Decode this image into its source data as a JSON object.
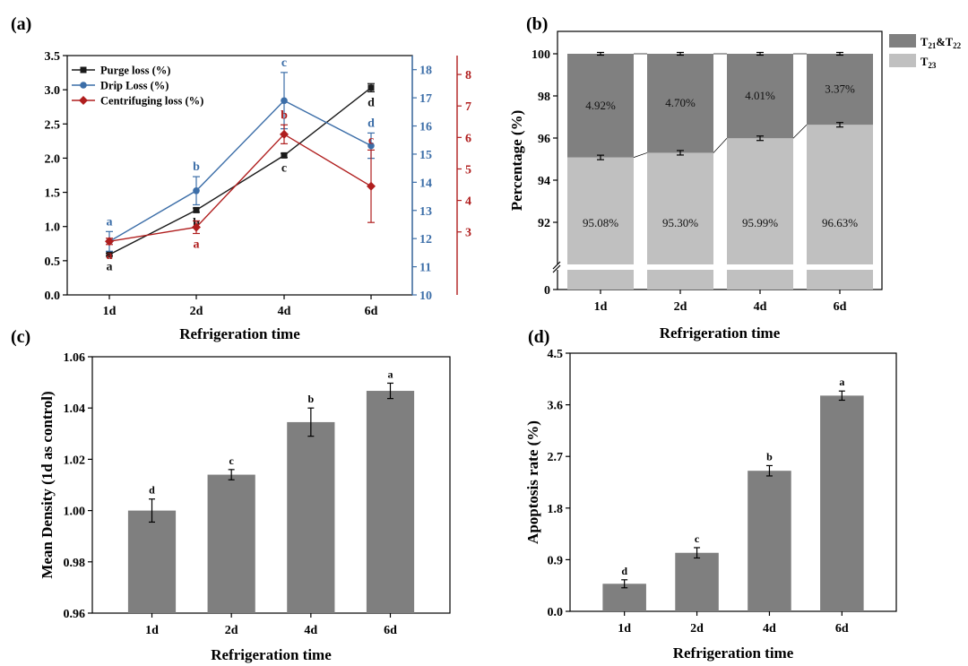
{
  "figure": {
    "panel_labels": [
      "(a)",
      "(b)",
      "(c)",
      "(d)"
    ]
  },
  "colors": {
    "purge": "#1a1a1a",
    "drip": "#3c6ea8",
    "centrifuge": "#b01e1e",
    "bar_gray": "#7f7f7f",
    "t21t22": "#808080",
    "t23": "#c0c0c0"
  },
  "chart_data": [
    {
      "panel": "(a)",
      "type": "line",
      "categories": [
        "1d",
        "2d",
        "4d",
        "6d"
      ],
      "xlabel": "Refrigeration time",
      "axes": {
        "left": {
          "ylim": [
            0,
            3.5
          ],
          "ticks": [
            "0.0",
            "0.5",
            "1.0",
            "1.5",
            "2.0",
            "2.5",
            "3.0",
            "3.5"
          ]
        },
        "right1": {
          "ylim": [
            10,
            18.5
          ],
          "ticks": [
            "10",
            "11",
            "12",
            "13",
            "14",
            "15",
            "16",
            "17",
            "18"
          ]
        },
        "right2": {
          "ylim": [
            1,
            8.6
          ],
          "ticks": [
            "3",
            "4",
            "5",
            "6",
            "7",
            "8"
          ]
        }
      },
      "legend_position": "top-left",
      "series": [
        {
          "name": "Purge loss (%)",
          "axis": "left",
          "marker": "square",
          "color": "#1a1a1a",
          "values": [
            0.59,
            1.24,
            2.04,
            3.03
          ],
          "errors": [
            0.02,
            0.03,
            0.03,
            0.06
          ],
          "letters": [
            "a",
            "b",
            "c",
            "d"
          ]
        },
        {
          "name": "Drip Loss (%)",
          "axis": "right1",
          "marker": "circle",
          "color": "#3c6ea8",
          "values": [
            11.9,
            13.7,
            16.9,
            15.3
          ],
          "errors": [
            0.35,
            0.5,
            1.0,
            0.45
          ],
          "letters": [
            "a",
            "b",
            "c",
            "d"
          ]
        },
        {
          "name": "Centrifuging loss (%)",
          "axis": "right2",
          "marker": "diamond",
          "color": "#b01e1e",
          "values": [
            2.7,
            3.15,
            6.1,
            4.45
          ],
          "errors": [
            0.1,
            0.2,
            0.3,
            1.15
          ],
          "letters": [
            "a",
            "a",
            "b",
            "c"
          ]
        }
      ]
    },
    {
      "panel": "(b)",
      "type": "bar",
      "stacked": true,
      "categories": [
        "1d",
        "2d",
        "4d",
        "6d"
      ],
      "xlabel": "Refrigeration time",
      "ylabel": "Percentage (%)",
      "ylim": [
        90,
        100
      ],
      "axis_break": true,
      "ticks": [
        "100",
        "98",
        "96",
        "94",
        "92",
        "0"
      ],
      "legend_position": "right",
      "series": [
        {
          "name_main": "T",
          "name_sub1": "21",
          "name_mid": "&T",
          "name_sub2": "22",
          "values": [
            4.92,
            4.7,
            4.01,
            3.37
          ],
          "labels": [
            "4.92%",
            "4.70%",
            "4.01%",
            "3.37%"
          ]
        },
        {
          "name_main": "T",
          "name_sub1": "23",
          "values": [
            95.08,
            95.3,
            95.99,
            96.63
          ],
          "labels": [
            "95.08%",
            "95.30%",
            "95.99%",
            "96.63%"
          ]
        }
      ]
    },
    {
      "panel": "(c)",
      "type": "bar",
      "categories": [
        "1d",
        "2d",
        "4d",
        "6d"
      ],
      "values": [
        1.0,
        1.014,
        1.0345,
        1.0467
      ],
      "errors": [
        0.0045,
        0.002,
        0.0055,
        0.003
      ],
      "letters": [
        "d",
        "c",
        "b",
        "a"
      ],
      "xlabel": "Refrigeration time",
      "ylabel": "Mean Density (1d as control)",
      "ylim": [
        0.96,
        1.06
      ],
      "ticks": [
        "0.96",
        "0.98",
        "1.00",
        "1.02",
        "1.04",
        "1.06"
      ]
    },
    {
      "panel": "(d)",
      "type": "bar",
      "categories": [
        "1d",
        "2d",
        "4d",
        "6d"
      ],
      "values": [
        0.48,
        1.02,
        2.45,
        3.76
      ],
      "errors": [
        0.07,
        0.09,
        0.09,
        0.08
      ],
      "letters": [
        "d",
        "c",
        "b",
        "a"
      ],
      "xlabel": "Refrigeration time",
      "ylabel": "Apoptosis rate  (%)",
      "ylim": [
        0,
        4.5
      ],
      "ticks": [
        "0.0",
        "0.9",
        "1.8",
        "2.7",
        "3.6",
        "4.5"
      ]
    }
  ]
}
